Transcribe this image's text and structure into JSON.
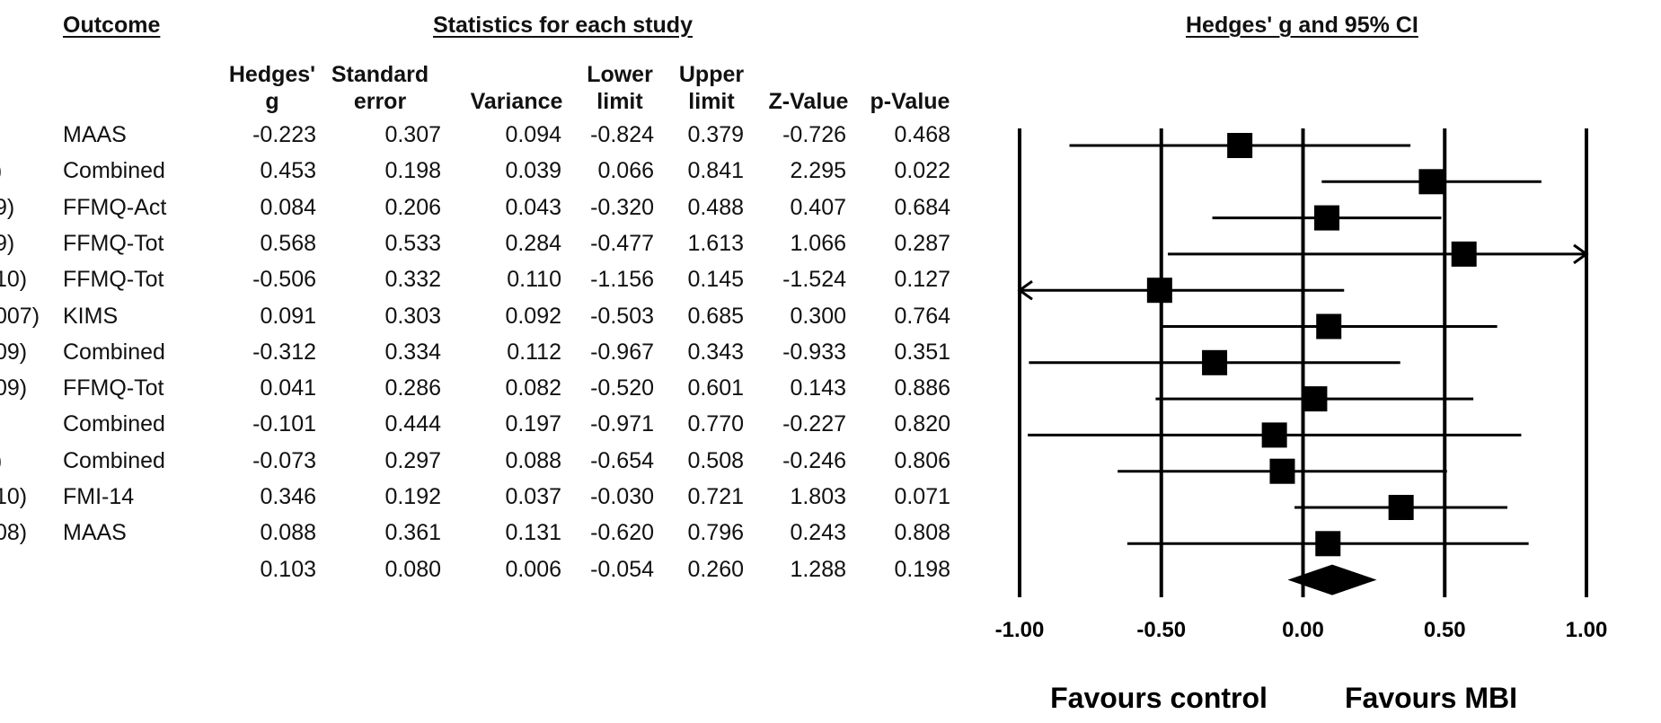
{
  "headers": {
    "outcome": "Outcome",
    "stats": "Statistics for each study",
    "forest": "Hedges' g and 95% CI"
  },
  "columns": [
    {
      "key": "g",
      "label": "Hedges'\ng"
    },
    {
      "key": "se",
      "label": "Standard\nerror"
    },
    {
      "key": "var",
      "label": "Variance"
    },
    {
      "key": "lo",
      "label": "Lower\nlimit"
    },
    {
      "key": "hi",
      "label": "Upper\nlimit"
    },
    {
      "key": "z",
      "label": "Z-Value"
    },
    {
      "key": "p",
      "label": "p-Value"
    }
  ],
  "rows": [
    {
      "study": "",
      "outcome": "MAAS",
      "g": "-0.223",
      "se": "0.307",
      "var": "0.094",
      "lo": "-0.824",
      "hi": "0.379",
      "z": "-0.726",
      "p": "0.468"
    },
    {
      "study": ")",
      "outcome": "Combined",
      "g": "0.453",
      "se": "0.198",
      "var": "0.039",
      "lo": "0.066",
      "hi": "0.841",
      "z": "2.295",
      "p": "0.022"
    },
    {
      "study": "9)",
      "outcome": "FFMQ-Act",
      "g": "0.084",
      "se": "0.206",
      "var": "0.043",
      "lo": "-0.320",
      "hi": "0.488",
      "z": "0.407",
      "p": "0.684"
    },
    {
      "study": "9)",
      "outcome": "FFMQ-Tot",
      "g": "0.568",
      "se": "0.533",
      "var": "0.284",
      "lo": "-0.477",
      "hi": "1.613",
      "z": "1.066",
      "p": "0.287"
    },
    {
      "study": "10)",
      "outcome": "FFMQ-Tot",
      "g": "-0.506",
      "se": "0.332",
      "var": "0.110",
      "lo": "-1.156",
      "hi": "0.145",
      "z": "-1.524",
      "p": "0.127"
    },
    {
      "study": "007)",
      "outcome": "KIMS",
      "g": "0.091",
      "se": "0.303",
      "var": "0.092",
      "lo": "-0.503",
      "hi": "0.685",
      "z": "0.300",
      "p": "0.764"
    },
    {
      "study": "09)",
      "outcome": "Combined",
      "g": "-0.312",
      "se": "0.334",
      "var": "0.112",
      "lo": "-0.967",
      "hi": "0.343",
      "z": "-0.933",
      "p": "0.351"
    },
    {
      "study": "09)",
      "outcome": "FFMQ-Tot",
      "g": "0.041",
      "se": "0.286",
      "var": "0.082",
      "lo": "-0.520",
      "hi": "0.601",
      "z": "0.143",
      "p": "0.886"
    },
    {
      "study": "",
      "outcome": "Combined",
      "g": "-0.101",
      "se": "0.444",
      "var": "0.197",
      "lo": "-0.971",
      "hi": "0.770",
      "z": "-0.227",
      "p": "0.820"
    },
    {
      "study": ")",
      "outcome": "Combined",
      "g": "-0.073",
      "se": "0.297",
      "var": "0.088",
      "lo": "-0.654",
      "hi": "0.508",
      "z": "-0.246",
      "p": "0.806"
    },
    {
      "study": "10)",
      "outcome": "FMI-14",
      "g": "0.346",
      "se": "0.192",
      "var": "0.037",
      "lo": "-0.030",
      "hi": "0.721",
      "z": "1.803",
      "p": "0.071"
    },
    {
      "study": "08)",
      "outcome": "MAAS",
      "g": "0.088",
      "se": "0.361",
      "var": "0.131",
      "lo": "-0.620",
      "hi": "0.796",
      "z": "0.243",
      "p": "0.808"
    }
  ],
  "summary": {
    "g": "0.103",
    "se": "0.080",
    "var": "0.006",
    "lo": "-0.054",
    "hi": "0.260",
    "z": "1.288",
    "p": "0.198"
  },
  "chart_data": {
    "type": "forest",
    "title": "Hedges' g and 95% CI",
    "xlim": [
      -1.0,
      1.0
    ],
    "x_ticks": [
      "-1.00",
      "-0.50",
      "0.00",
      "0.50",
      "1.00"
    ],
    "favours_left": "Favours control",
    "favours_right": "Favours MBI",
    "points": [
      {
        "g": -0.223,
        "lo": -0.824,
        "hi": 0.379
      },
      {
        "g": 0.453,
        "lo": 0.066,
        "hi": 0.841
      },
      {
        "g": 0.084,
        "lo": -0.32,
        "hi": 0.488
      },
      {
        "g": 0.568,
        "lo": -0.477,
        "hi": 1.613
      },
      {
        "g": -0.506,
        "lo": -1.156,
        "hi": 0.145
      },
      {
        "g": 0.091,
        "lo": -0.503,
        "hi": 0.685
      },
      {
        "g": -0.312,
        "lo": -0.967,
        "hi": 0.343
      },
      {
        "g": 0.041,
        "lo": -0.52,
        "hi": 0.601
      },
      {
        "g": -0.101,
        "lo": -0.971,
        "hi": 0.77
      },
      {
        "g": -0.073,
        "lo": -0.654,
        "hi": 0.508
      },
      {
        "g": 0.346,
        "lo": -0.03,
        "hi": 0.721
      },
      {
        "g": 0.088,
        "lo": -0.62,
        "hi": 0.796
      }
    ],
    "summary": {
      "g": 0.103,
      "lo": -0.054,
      "hi": 0.26
    }
  }
}
